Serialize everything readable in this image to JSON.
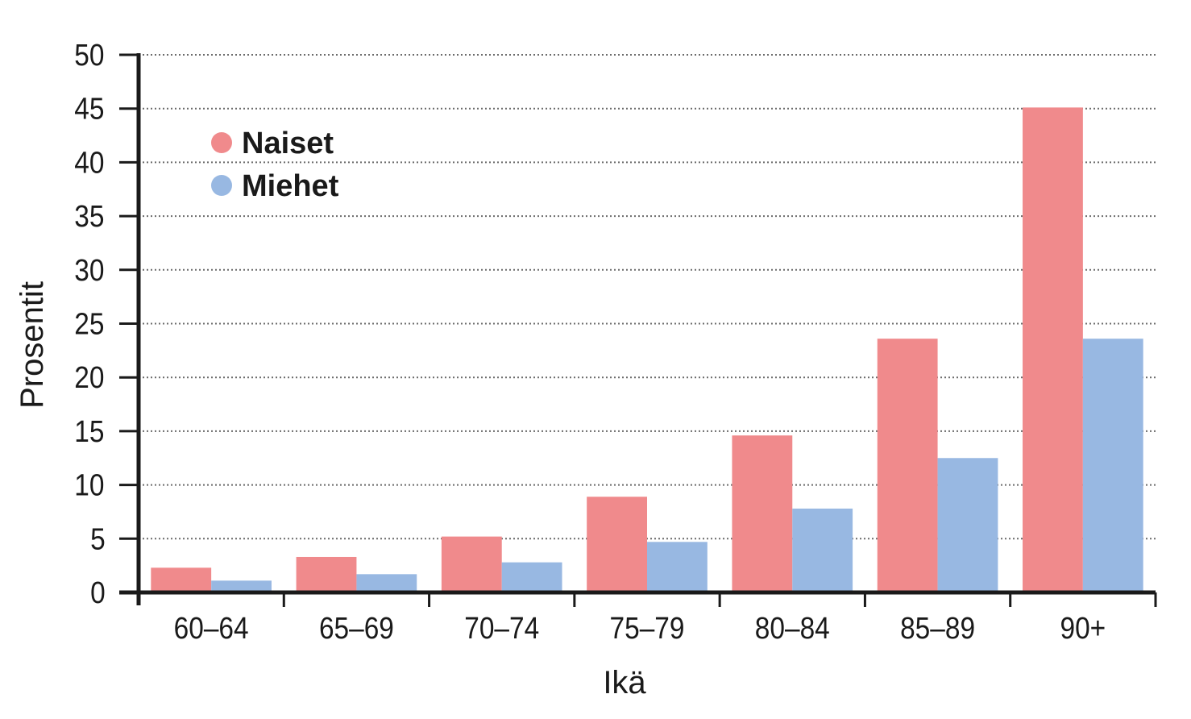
{
  "chart_data": {
    "type": "bar",
    "title": "",
    "xlabel": "Ikä",
    "ylabel": "Prosentit",
    "categories": [
      "60–64",
      "65–69",
      "70–74",
      "75–79",
      "80–84",
      "85–89",
      "90+"
    ],
    "series": [
      {
        "name": "Naiset",
        "color": "#f08a8c",
        "values": [
          2.3,
          3.3,
          5.2,
          8.9,
          14.6,
          23.6,
          45.1
        ]
      },
      {
        "name": "Miehet",
        "color": "#98b8e2",
        "values": [
          1.1,
          1.7,
          2.8,
          4.7,
          7.8,
          12.5,
          23.6
        ]
      }
    ],
    "ylim": [
      0,
      50
    ],
    "yticks": [
      "0",
      "5",
      "10",
      "15",
      "20",
      "25",
      "30",
      "35",
      "40",
      "45",
      "50"
    ],
    "grid": true,
    "grid_style": "dotted",
    "legend_position": "top-left"
  }
}
